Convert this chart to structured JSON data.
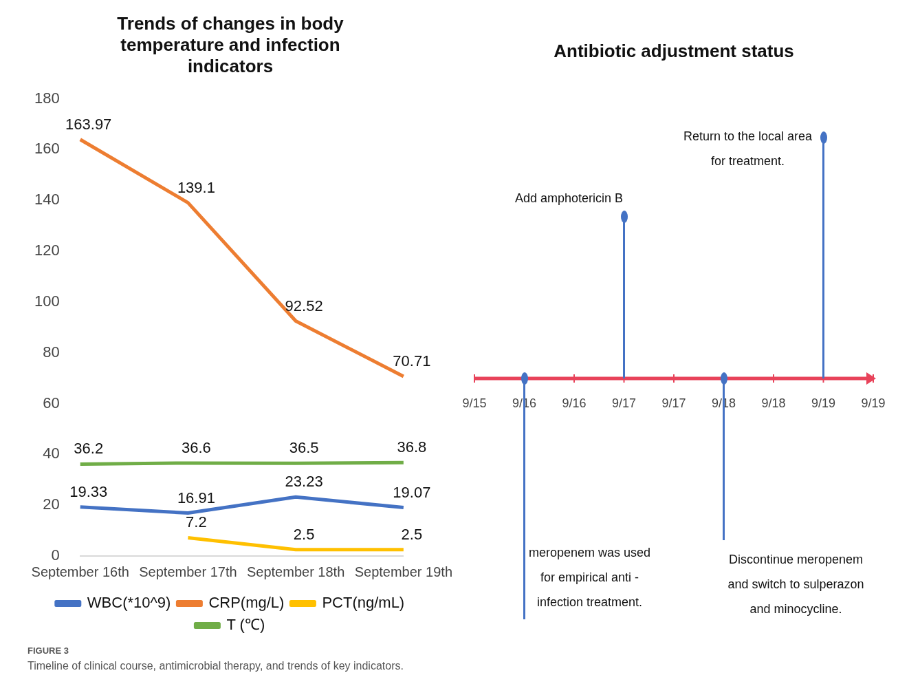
{
  "chart_data": [
    {
      "type": "line",
      "title": "Trends of changes in body temperature and infection indicators",
      "categories": [
        "September 16th",
        "September 17th",
        "September 18th",
        "September 19th"
      ],
      "series": [
        {
          "name": "WBC(*10^9)",
          "color": "#4472c4",
          "values": [
            19.33,
            16.91,
            23.23,
            19.07
          ]
        },
        {
          "name": "CRP(mg/L)",
          "color": "#ed7d31",
          "values": [
            163.97,
            139.1,
            92.52,
            70.71
          ]
        },
        {
          "name": "PCT(ng/mL)",
          "color": "#ffc000",
          "values": [
            null,
            7.2,
            2.5,
            2.5
          ]
        },
        {
          "name": "T (℃)",
          "color": "#70ad47",
          "values": [
            36.2,
            36.6,
            36.5,
            36.8
          ]
        }
      ],
      "ylim": [
        0,
        180
      ],
      "yticks": [
        0,
        20,
        40,
        60,
        80,
        100,
        120,
        140,
        160,
        180
      ],
      "data_labels": true,
      "legend": "bottom",
      "marker": "none",
      "annotations": [
        "FIGURE 3",
        "Timeline of clinical course, antimicrobial therapy, and trends of key indicators."
      ]
    },
    {
      "type": "other",
      "title": "Antibiotic adjustment status",
      "categories": [
        "9/15",
        "9/16",
        "9/16",
        "9/17",
        "9/17",
        "9/18",
        "9/18",
        "9/19",
        "9/19"
      ],
      "annotations": [
        "meropenem was used for empirical anti - infection treatment.",
        "Add amphotericin B",
        "Discontinue meropenem and switch to sulperazon and minocycline.",
        "Return to the local area for treatment."
      ]
    }
  ]
}
